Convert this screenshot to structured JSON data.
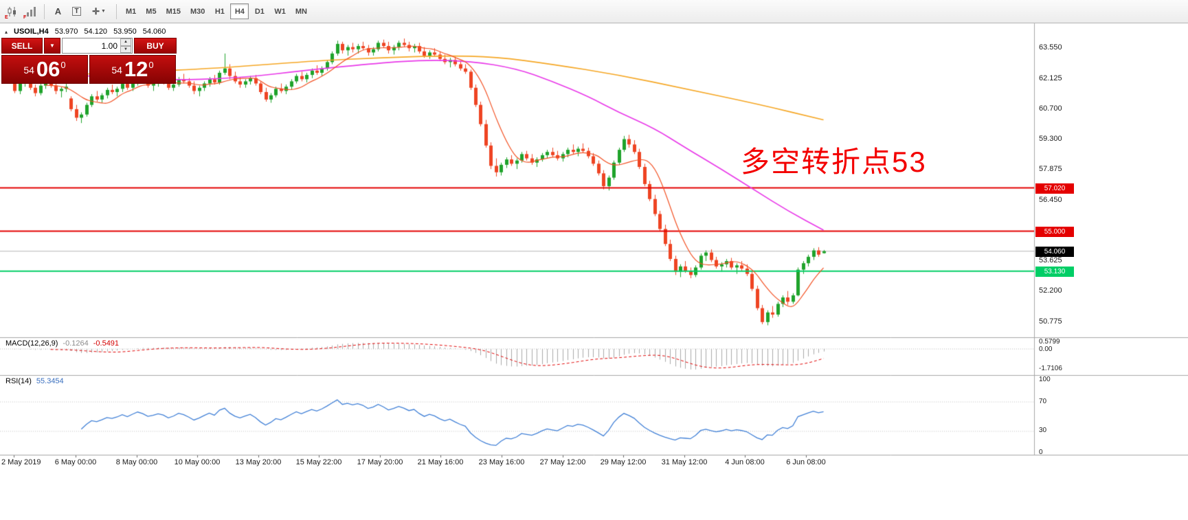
{
  "icons": {
    "symbol_marker": "▴",
    "caret_down": "▼",
    "spinner_up": "▲",
    "spinner_down": "▼",
    "text_tool": "A",
    "textbox_tool": "T",
    "crosshair_tool": "✛"
  },
  "toolbar": {
    "timeframes": [
      "M1",
      "M5",
      "M15",
      "M30",
      "H1",
      "H4",
      "D1",
      "W1",
      "MN"
    ],
    "active_timeframe": "H4",
    "icon_tags": [
      "E",
      "F"
    ]
  },
  "chart": {
    "symbol": "USOIL,H4",
    "open": "53.970",
    "high": "54.120",
    "low": "53.950",
    "close": "54.060",
    "annotation": "多空转折点53",
    "colors": {
      "up": "#1fa32b",
      "down": "#ee4423",
      "ma_slow": "#f5a623",
      "ma_medium": "#e838e8",
      "ma_fast": "#f25022",
      "level_red": "#e40000",
      "level_green": "#00ce66",
      "current_price_line": "#b4b4b4",
      "macd_histogram": "#a9a9a9",
      "macd_signal": "#e00000",
      "rsi_line": "#3f7fd6"
    },
    "price_axis": {
      "ticks": [
        "63.550",
        "62.125",
        "60.700",
        "59.300",
        "57.875",
        "56.450",
        "53.625",
        "52.200",
        "50.775"
      ],
      "badges": [
        {
          "label": "57.020",
          "price": 57.02,
          "color": "#e40000"
        },
        {
          "label": "55.000",
          "price": 55.0,
          "color": "#e40000"
        },
        {
          "label": "54.060",
          "price": 54.06,
          "color": "#000000"
        },
        {
          "label": "53.130",
          "price": 53.13,
          "color": "#00ce66"
        }
      ]
    },
    "levels": [
      {
        "price": 54.06,
        "color": "#b4b4b4",
        "width": 1
      },
      {
        "price": 57.02,
        "color": "#e40000",
        "width": 2
      },
      {
        "price": 55.0,
        "color": "#e40000",
        "width": 2
      },
      {
        "price": 53.13,
        "color": "#00ce66",
        "width": 2
      }
    ],
    "candles": [
      [
        62.4,
        62.5,
        61.9,
        62.0
      ],
      [
        62.0,
        62.15,
        61.45,
        61.55
      ],
      [
        61.55,
        62.05,
        61.4,
        61.95
      ],
      [
        61.95,
        62.25,
        61.75,
        62.15
      ],
      [
        62.15,
        62.3,
        61.6,
        61.7
      ],
      [
        61.7,
        61.85,
        61.3,
        61.45
      ],
      [
        61.45,
        61.9,
        61.35,
        61.8
      ],
      [
        61.8,
        62.1,
        61.65,
        62.0
      ],
      [
        62.0,
        62.2,
        61.7,
        61.8
      ],
      [
        61.8,
        61.95,
        61.4,
        61.55
      ],
      [
        61.55,
        61.75,
        61.25,
        61.65
      ],
      [
        61.65,
        61.9,
        61.5,
        61.75
      ],
      [
        61.2,
        61.3,
        60.6,
        60.7
      ],
      [
        60.7,
        60.9,
        60.15,
        60.3
      ],
      [
        60.3,
        60.55,
        60.05,
        60.45
      ],
      [
        60.45,
        61.0,
        60.35,
        60.9
      ],
      [
        60.9,
        61.4,
        60.8,
        61.3
      ],
      [
        61.3,
        61.55,
        61.05,
        61.15
      ],
      [
        61.15,
        61.45,
        61.0,
        61.35
      ],
      [
        61.35,
        61.7,
        61.2,
        61.6
      ],
      [
        61.6,
        61.85,
        61.4,
        61.5
      ],
      [
        61.5,
        61.75,
        61.3,
        61.65
      ],
      [
        61.65,
        62.0,
        61.5,
        61.9
      ],
      [
        61.9,
        62.1,
        61.6,
        61.7
      ],
      [
        61.7,
        62.05,
        61.55,
        61.95
      ],
      [
        61.95,
        62.3,
        61.8,
        62.2
      ],
      [
        62.2,
        62.4,
        61.95,
        62.05
      ],
      [
        62.05,
        62.2,
        61.7,
        61.8
      ],
      [
        61.8,
        62.0,
        61.55,
        61.9
      ],
      [
        61.9,
        62.15,
        61.75,
        62.05
      ],
      [
        62.05,
        62.25,
        61.85,
        61.95
      ],
      [
        61.95,
        62.1,
        61.6,
        61.7
      ],
      [
        61.7,
        61.95,
        61.55,
        61.85
      ],
      [
        61.85,
        62.2,
        61.75,
        62.1
      ],
      [
        62.1,
        62.35,
        61.9,
        62.0
      ],
      [
        62.0,
        62.15,
        61.7,
        61.8
      ],
      [
        61.8,
        62.0,
        61.4,
        61.55
      ],
      [
        61.55,
        61.8,
        61.3,
        61.7
      ],
      [
        61.7,
        62.0,
        61.55,
        61.9
      ],
      [
        61.9,
        62.2,
        61.75,
        62.1
      ],
      [
        62.1,
        62.3,
        61.85,
        61.95
      ],
      [
        61.95,
        62.5,
        61.85,
        62.4
      ],
      [
        62.4,
        63.3,
        62.3,
        62.6
      ],
      [
        62.6,
        62.8,
        62.1,
        62.25
      ],
      [
        62.25,
        62.45,
        61.9,
        62.0
      ],
      [
        62.0,
        62.2,
        61.7,
        61.85
      ],
      [
        61.85,
        62.1,
        61.7,
        62.0
      ],
      [
        62.0,
        62.25,
        61.85,
        62.15
      ],
      [
        62.15,
        62.3,
        61.8,
        61.9
      ],
      [
        61.9,
        62.0,
        61.4,
        61.5
      ],
      [
        61.5,
        61.7,
        61.05,
        61.15
      ],
      [
        61.15,
        61.45,
        61.0,
        61.35
      ],
      [
        61.35,
        61.75,
        61.25,
        61.65
      ],
      [
        61.65,
        61.9,
        61.45,
        61.55
      ],
      [
        61.55,
        61.85,
        61.4,
        61.75
      ],
      [
        61.75,
        62.1,
        61.6,
        62.0
      ],
      [
        62.0,
        62.35,
        61.9,
        62.25
      ],
      [
        62.25,
        62.45,
        62.0,
        62.1
      ],
      [
        62.1,
        62.4,
        61.95,
        62.3
      ],
      [
        62.3,
        62.6,
        62.15,
        62.5
      ],
      [
        62.5,
        62.75,
        62.3,
        62.4
      ],
      [
        62.4,
        62.7,
        62.25,
        62.6
      ],
      [
        62.6,
        63.0,
        62.5,
        62.9
      ],
      [
        62.9,
        63.4,
        62.8,
        63.3
      ],
      [
        63.3,
        63.9,
        63.2,
        63.75
      ],
      [
        63.75,
        63.85,
        63.3,
        63.45
      ],
      [
        63.45,
        63.7,
        63.2,
        63.6
      ],
      [
        63.6,
        63.8,
        63.35,
        63.5
      ],
      [
        63.5,
        63.75,
        63.3,
        63.65
      ],
      [
        63.65,
        63.85,
        63.45,
        63.55
      ],
      [
        63.55,
        63.7,
        63.2,
        63.35
      ],
      [
        63.35,
        63.6,
        63.2,
        63.5
      ],
      [
        63.5,
        63.9,
        63.4,
        63.8
      ],
      [
        63.8,
        63.95,
        63.55,
        63.65
      ],
      [
        63.65,
        63.85,
        63.3,
        63.45
      ],
      [
        63.45,
        63.7,
        63.25,
        63.6
      ],
      [
        63.6,
        63.9,
        63.45,
        63.8
      ],
      [
        63.8,
        64.0,
        63.6,
        63.7
      ],
      [
        63.7,
        63.85,
        63.4,
        63.55
      ],
      [
        63.55,
        63.75,
        63.35,
        63.65
      ],
      [
        63.65,
        63.8,
        63.3,
        63.4
      ],
      [
        63.4,
        63.6,
        63.1,
        63.2
      ],
      [
        63.2,
        63.45,
        63.05,
        63.35
      ],
      [
        63.35,
        63.55,
        63.15,
        63.25
      ],
      [
        63.25,
        63.4,
        62.95,
        63.05
      ],
      [
        63.05,
        63.25,
        62.8,
        62.9
      ],
      [
        62.9,
        63.1,
        62.65,
        63.0
      ],
      [
        63.0,
        63.15,
        62.7,
        62.8
      ],
      [
        62.8,
        62.95,
        62.5,
        62.6
      ],
      [
        62.6,
        62.8,
        62.35,
        62.45
      ],
      [
        62.45,
        62.55,
        61.6,
        61.7
      ],
      [
        61.7,
        61.85,
        60.8,
        60.9
      ],
      [
        60.9,
        61.05,
        59.9,
        60.0
      ],
      [
        60.0,
        60.2,
        58.9,
        59.0
      ],
      [
        59.0,
        59.15,
        57.9,
        58.05
      ],
      [
        58.05,
        58.4,
        57.55,
        57.75
      ],
      [
        57.75,
        58.2,
        57.6,
        58.1
      ],
      [
        58.1,
        58.45,
        57.95,
        58.35
      ],
      [
        58.35,
        58.55,
        58.05,
        58.15
      ],
      [
        58.15,
        58.4,
        57.9,
        58.3
      ],
      [
        58.3,
        58.7,
        58.2,
        58.6
      ],
      [
        58.6,
        58.75,
        58.3,
        58.4
      ],
      [
        58.4,
        58.6,
        58.1,
        58.2
      ],
      [
        58.2,
        58.45,
        58.0,
        58.35
      ],
      [
        58.35,
        58.65,
        58.25,
        58.55
      ],
      [
        58.55,
        58.8,
        58.4,
        58.7
      ],
      [
        58.7,
        58.9,
        58.45,
        58.55
      ],
      [
        58.55,
        58.75,
        58.3,
        58.4
      ],
      [
        58.4,
        58.7,
        58.25,
        58.6
      ],
      [
        58.6,
        58.9,
        58.45,
        58.8
      ],
      [
        58.8,
        59.05,
        58.6,
        58.7
      ],
      [
        58.7,
        58.95,
        58.5,
        58.85
      ],
      [
        58.85,
        59.1,
        58.65,
        58.75
      ],
      [
        58.75,
        58.9,
        58.4,
        58.5
      ],
      [
        58.5,
        58.65,
        58.05,
        58.15
      ],
      [
        58.15,
        58.3,
        57.6,
        57.7
      ],
      [
        57.7,
        57.85,
        56.95,
        57.1
      ],
      [
        57.1,
        57.6,
        56.9,
        57.5
      ],
      [
        57.5,
        58.3,
        57.4,
        58.2
      ],
      [
        58.2,
        58.9,
        58.1,
        58.8
      ],
      [
        58.8,
        59.45,
        58.7,
        59.3
      ],
      [
        59.3,
        59.5,
        58.9,
        59.05
      ],
      [
        59.05,
        59.25,
        58.6,
        58.7
      ],
      [
        58.7,
        58.85,
        57.9,
        58.0
      ],
      [
        58.0,
        58.15,
        57.1,
        57.2
      ],
      [
        57.2,
        57.35,
        56.4,
        56.5
      ],
      [
        56.5,
        56.7,
        55.7,
        55.8
      ],
      [
        55.8,
        55.95,
        55.0,
        55.1
      ],
      [
        55.1,
        55.3,
        54.3,
        54.4
      ],
      [
        54.4,
        54.6,
        53.6,
        53.7
      ],
      [
        53.7,
        53.85,
        52.95,
        53.1
      ],
      [
        53.1,
        53.45,
        52.85,
        53.35
      ],
      [
        53.35,
        53.6,
        53.05,
        53.15
      ],
      [
        53.15,
        53.3,
        52.8,
        52.95
      ],
      [
        52.95,
        53.4,
        52.85,
        53.3
      ],
      [
        53.3,
        53.95,
        53.2,
        53.85
      ],
      [
        53.85,
        54.1,
        53.6,
        54.0
      ],
      [
        54.0,
        54.15,
        53.55,
        53.65
      ],
      [
        53.65,
        53.8,
        53.25,
        53.35
      ],
      [
        53.35,
        53.55,
        53.1,
        53.45
      ],
      [
        53.45,
        53.7,
        53.3,
        53.6
      ],
      [
        53.6,
        53.75,
        53.2,
        53.3
      ],
      [
        53.3,
        53.5,
        53.0,
        53.4
      ],
      [
        53.4,
        53.6,
        53.15,
        53.25
      ],
      [
        53.25,
        53.45,
        52.9,
        53.0
      ],
      [
        53.0,
        53.15,
        52.2,
        52.3
      ],
      [
        52.3,
        52.45,
        51.3,
        51.4
      ],
      [
        51.4,
        51.55,
        50.65,
        50.75
      ],
      [
        50.75,
        51.3,
        50.6,
        51.2
      ],
      [
        51.2,
        51.5,
        50.95,
        51.1
      ],
      [
        51.1,
        51.7,
        51.0,
        51.6
      ],
      [
        51.6,
        52.0,
        51.45,
        51.9
      ],
      [
        51.9,
        52.2,
        51.55,
        51.7
      ],
      [
        51.7,
        52.1,
        51.6,
        52.0
      ],
      [
        52.0,
        53.3,
        51.95,
        53.2
      ],
      [
        53.2,
        53.6,
        53.0,
        53.5
      ],
      [
        53.5,
        53.9,
        53.35,
        53.8
      ],
      [
        53.8,
        54.2,
        53.65,
        54.1
      ],
      [
        54.1,
        54.25,
        53.8,
        53.9
      ],
      [
        53.97,
        54.12,
        53.95,
        54.06
      ]
    ],
    "ma_slow_points": [
      [
        0,
        62.25
      ],
      [
        12,
        62.3
      ],
      [
        25,
        62.45
      ],
      [
        40,
        62.6
      ],
      [
        59,
        62.95
      ],
      [
        72,
        63.1
      ],
      [
        85,
        63.2
      ],
      [
        95,
        63.15
      ],
      [
        106,
        62.8
      ],
      [
        119,
        62.3
      ],
      [
        132,
        61.65
      ],
      [
        146,
        60.95
      ],
      [
        159,
        60.2
      ]
    ],
    "ma_medium_points": [
      [
        0,
        62.5
      ],
      [
        15,
        62.25
      ],
      [
        30,
        62.05
      ],
      [
        45,
        62.15
      ],
      [
        59,
        62.55
      ],
      [
        72,
        62.85
      ],
      [
        81,
        63.0
      ],
      [
        90,
        62.95
      ],
      [
        99,
        62.6
      ],
      [
        106,
        62.0
      ],
      [
        113,
        61.3
      ],
      [
        119,
        60.55
      ],
      [
        126,
        59.8
      ],
      [
        132,
        58.9
      ],
      [
        139,
        57.9
      ],
      [
        146,
        56.85
      ],
      [
        152,
        55.95
      ],
      [
        159,
        55.05
      ]
    ],
    "ma_fast_period": 8
  },
  "macd": {
    "label": "MACD(12,26,9)",
    "value": "-0.1264",
    "signal_value": "-0.5491",
    "axis_max": "0.5799",
    "axis_zero": "0.00",
    "axis_min": "-1.7106",
    "fast": 12,
    "slow": 26,
    "signal_period": 9
  },
  "rsi": {
    "label": "RSI(14)",
    "value": "55.3454",
    "axis": [
      "100",
      "70",
      "30",
      "0"
    ],
    "period": 14,
    "levels": [
      70,
      30
    ]
  },
  "time_axis": [
    "2 May 2019",
    "6 May 00:00",
    "8 May 00:00",
    "10 May 00:00",
    "13 May 20:00",
    "15 May 22:00",
    "17 May 20:00",
    "21 May 16:00",
    "23 May 16:00",
    "27 May 12:00",
    "29 May 12:00",
    "31 May 12:00",
    "4 Jun 08:00",
    "6 Jun 08:00"
  ],
  "trade_panel": {
    "sell_label": "SELL",
    "buy_label": "BUY",
    "volume": "1.00",
    "sell_price": {
      "small": "54",
      "big": "06",
      "sup": "0"
    },
    "buy_price": {
      "small": "54",
      "big": "12",
      "sup": "0"
    }
  }
}
